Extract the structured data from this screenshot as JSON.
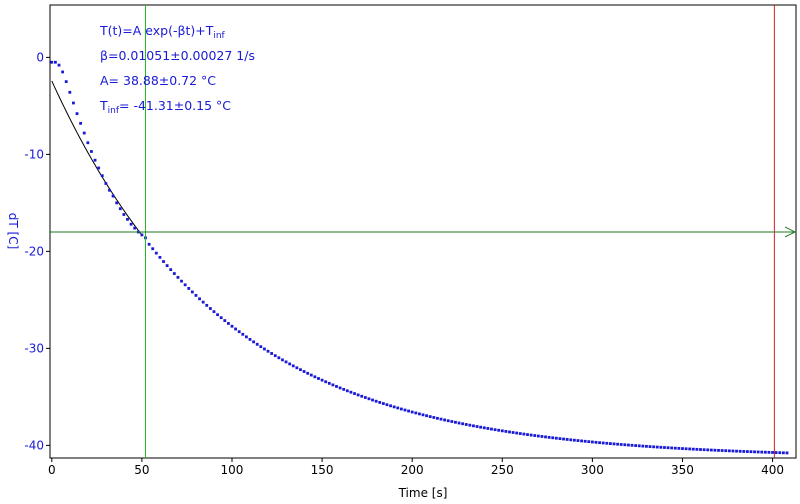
{
  "chart_data": {
    "type": "scatter",
    "title": "",
    "xlabel": "Time [s]",
    "ylabel": "dT [C]",
    "xlim": [
      -1,
      413
    ],
    "ylim": [
      -41.3,
      5.4
    ],
    "xticks": [
      0,
      50,
      100,
      150,
      200,
      250,
      300,
      350,
      400
    ],
    "yticks": [
      0,
      -10,
      -20,
      -30,
      -40
    ],
    "annotations": {
      "formula_main": "T(t)=A exp(-βt)+T",
      "formula_sub": "inf",
      "beta": "β=0.01051±0.00027 1/s",
      "amplitude": "A= 38.88±0.72 °C",
      "tinf_main": "T",
      "tinf_sub": "inf",
      "tinf_value": "= -41.31±0.15 °C"
    },
    "fit": {
      "A": 38.88,
      "beta": 0.01051,
      "Tinf": -41.31
    },
    "series": [
      {
        "style": "markers",
        "t_range": [
          0,
          408
        ],
        "sample_step": 2,
        "model": "A*exp(-beta*t)+Tinf with a shouldered start before about 50 s",
        "points_early": [
          [
            0,
            -0.5
          ],
          [
            2,
            -0.5
          ],
          [
            4,
            -0.8
          ],
          [
            6,
            -1.5
          ],
          [
            8,
            -2.5
          ],
          [
            10,
            -3.6
          ],
          [
            12,
            -4.7
          ],
          [
            14,
            -5.8
          ],
          [
            16,
            -6.8
          ],
          [
            18,
            -7.8
          ],
          [
            20,
            -8.8
          ],
          [
            22,
            -9.7
          ],
          [
            24,
            -10.6
          ],
          [
            26,
            -11.4
          ],
          [
            28,
            -12.2
          ],
          [
            30,
            -13.0
          ],
          [
            32,
            -13.7
          ],
          [
            34,
            -14.3
          ],
          [
            36,
            -15.0
          ],
          [
            38,
            -15.6
          ],
          [
            40,
            -16.2
          ],
          [
            42,
            -16.7
          ],
          [
            44,
            -17.2
          ],
          [
            46,
            -17.6
          ],
          [
            48,
            -18.0
          ],
          [
            50,
            -18.3
          ],
          [
            52,
            -18.6
          ]
        ]
      }
    ],
    "fit_line_color": "#000000",
    "cursors": {
      "vertical_green_x": 52,
      "horizontal_green_y": -18.0,
      "vertical_red_x": 401
    },
    "colors": {
      "data": "#1a1ad6",
      "axis_text": "#1a1ad6",
      "green_cursor": "#22bb22",
      "dark_green_cursor": "#1e7a1e",
      "red_cursor": "#cc2222"
    }
  }
}
